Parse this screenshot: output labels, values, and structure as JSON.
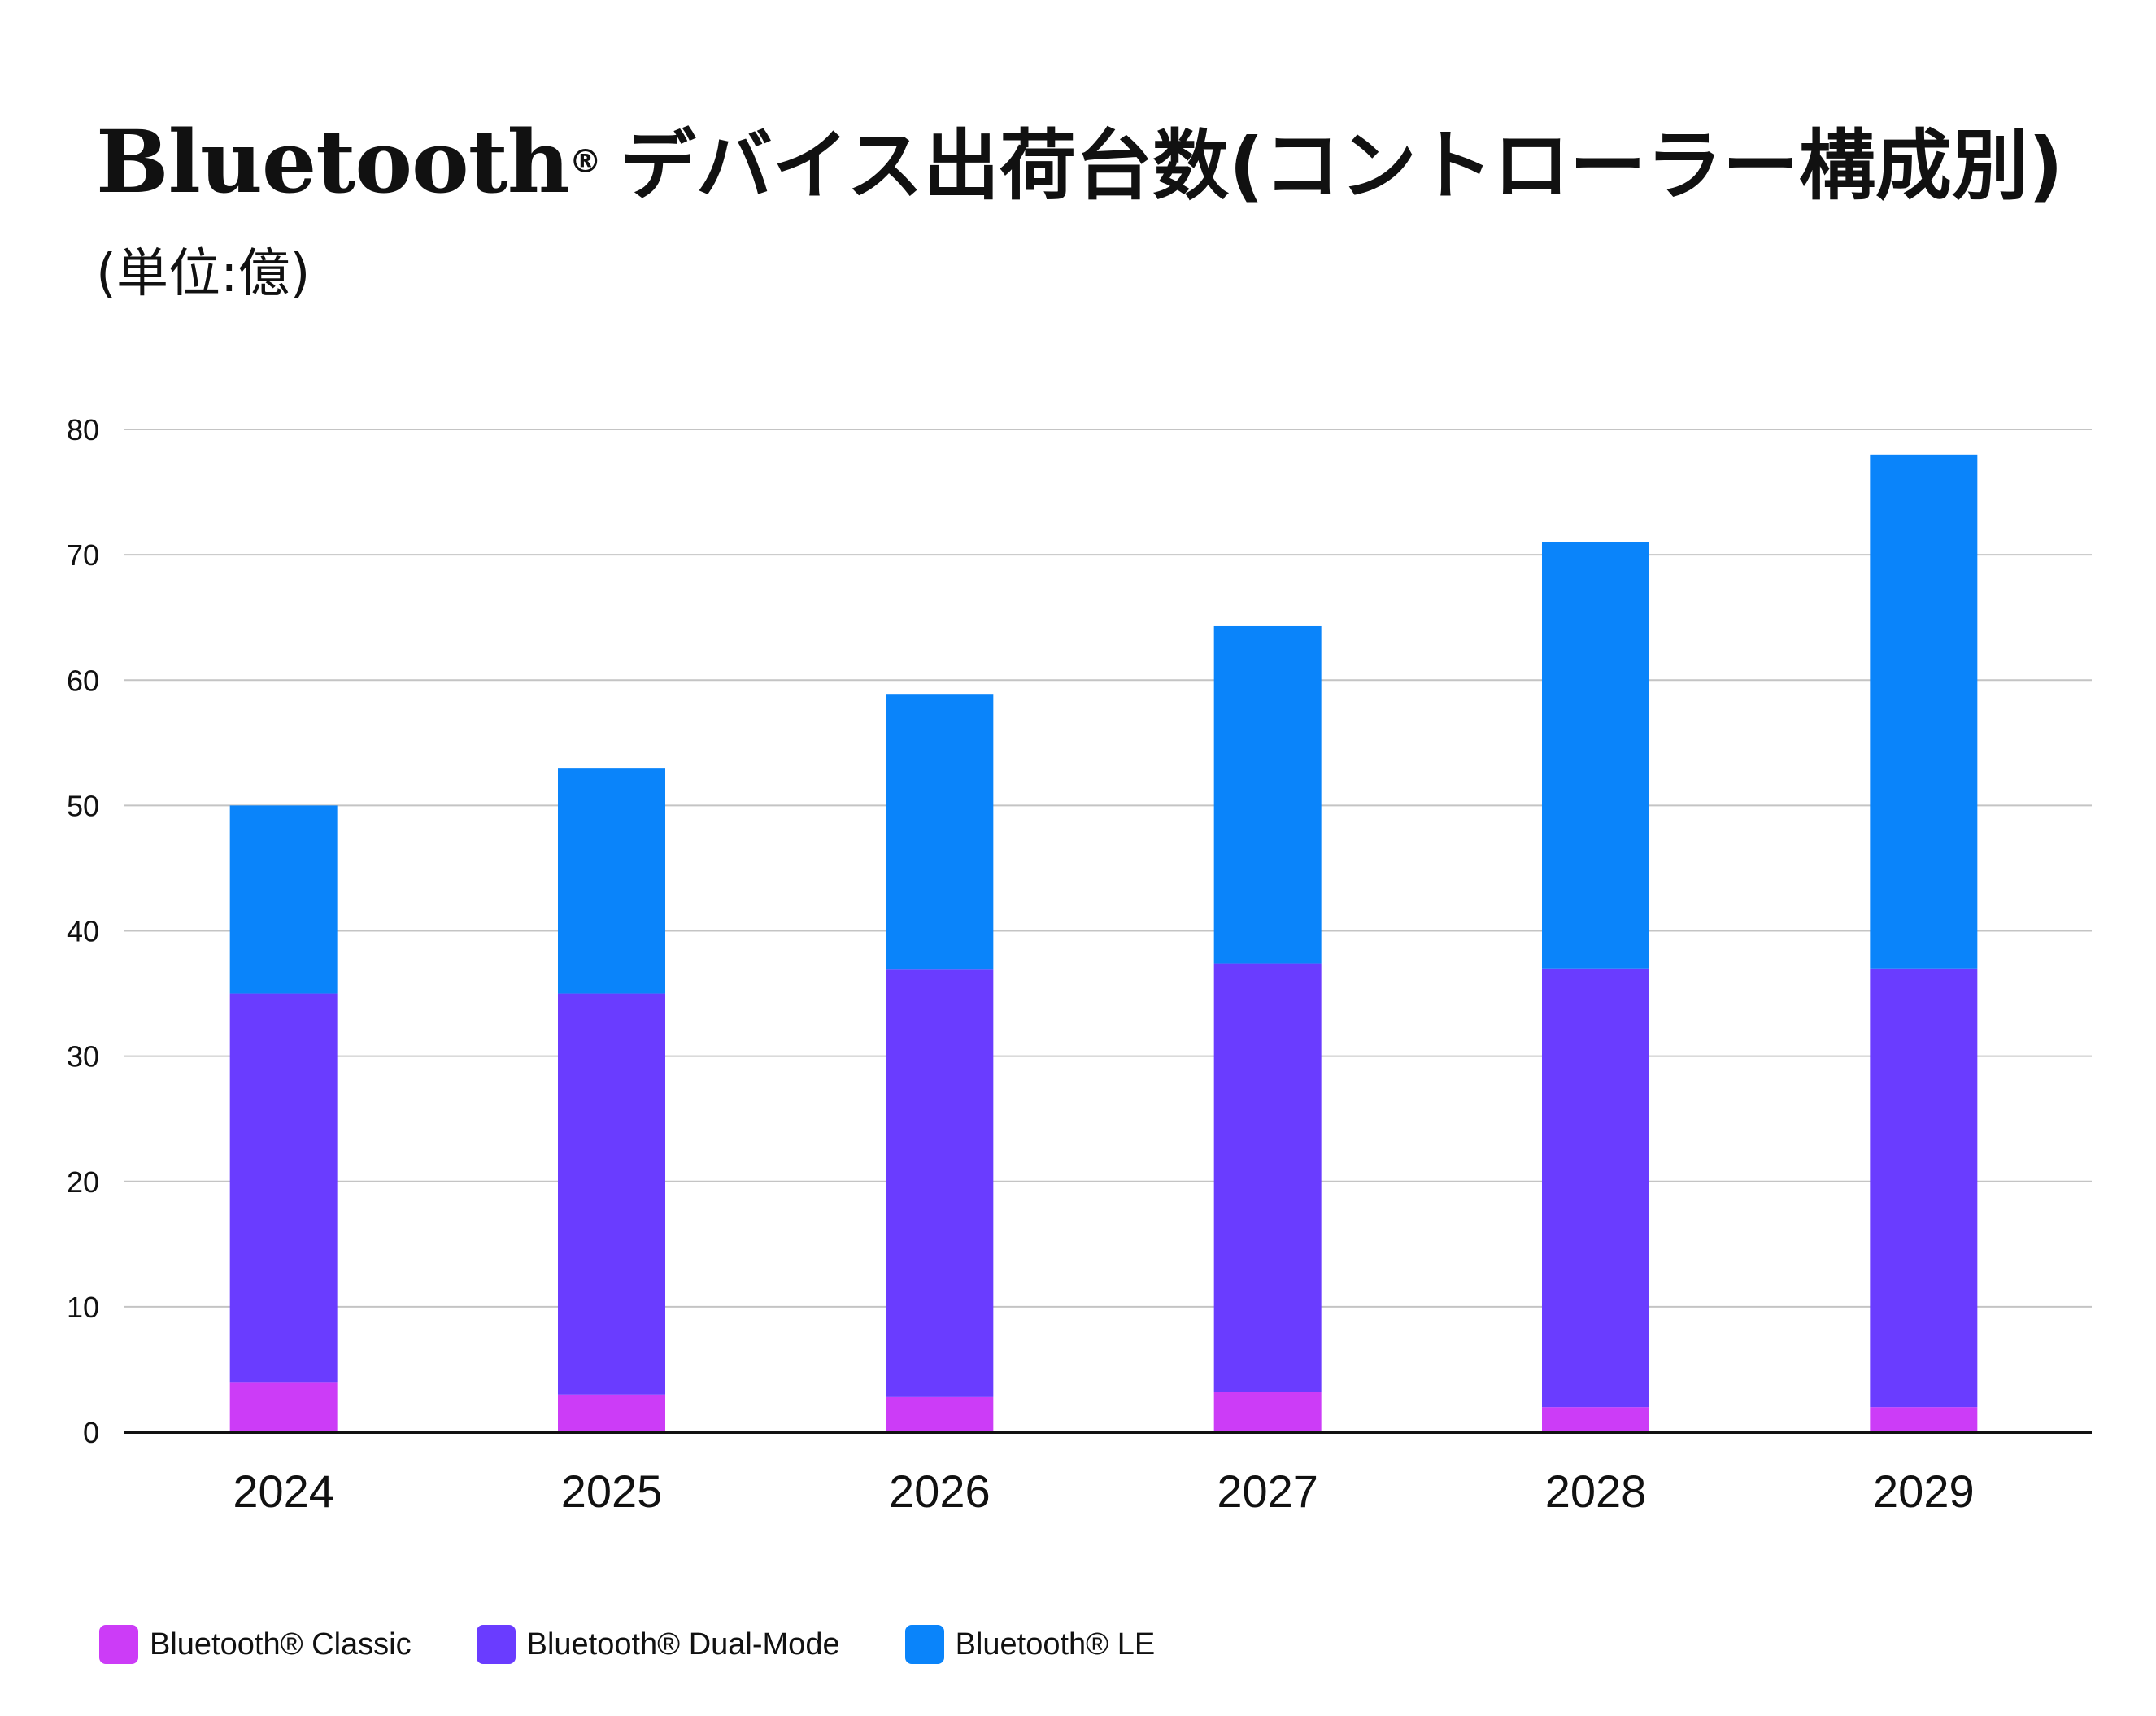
{
  "title": {
    "brand": "Bluetooth",
    "registered_mark": "®",
    "rest": "デバイス出荷台数(コントローラー構成別)"
  },
  "subtitle": "(単位:億)",
  "chart_data": {
    "type": "bar",
    "stacked": true,
    "categories": [
      "2024",
      "2025",
      "2026",
      "2027",
      "2028",
      "2029"
    ],
    "series": [
      {
        "name": "Bluetooth® Classic",
        "color": "#cc3cf7",
        "values": [
          4,
          3,
          2.8,
          3.2,
          2,
          2
        ]
      },
      {
        "name": "Bluetooth® Dual-Mode",
        "color": "#6a3cff",
        "values": [
          31,
          32,
          34.1,
          34.2,
          35,
          35
        ]
      },
      {
        "name": "Bluetooth® LE",
        "color": "#0a84fa",
        "values": [
          15,
          18,
          22,
          26.9,
          34,
          41
        ]
      }
    ],
    "ylim": [
      0,
      80
    ],
    "yticks": [
      "0",
      "10",
      "20",
      "30",
      "40",
      "50",
      "60",
      "70",
      "80"
    ],
    "grid": true,
    "legend_position": "bottom-left"
  }
}
